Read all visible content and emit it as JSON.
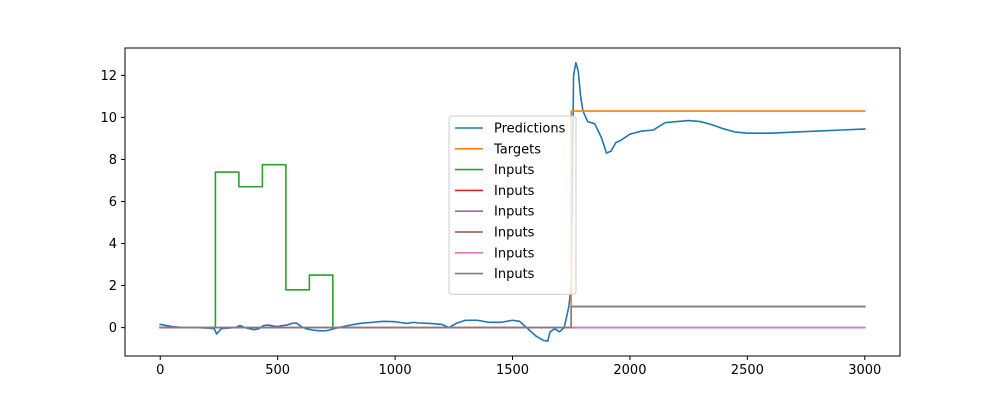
{
  "chart_data": {
    "type": "line",
    "title": "",
    "xlabel": "",
    "ylabel": "",
    "xlim": [
      -150,
      3150
    ],
    "ylim": [
      -1.35,
      13.3
    ],
    "xticks": [
      0,
      500,
      1000,
      1500,
      2000,
      2500,
      3000
    ],
    "yticks": [
      0,
      2,
      4,
      6,
      8,
      10,
      12
    ],
    "grid": false,
    "legend_position": "center",
    "series": [
      {
        "name": "Predictions",
        "color": "#1f77b4",
        "x": [
          0,
          50,
          100,
          150,
          200,
          230,
          240,
          260,
          290,
          320,
          340,
          360,
          380,
          400,
          420,
          440,
          460,
          480,
          500,
          520,
          540,
          560,
          580,
          600,
          620,
          650,
          680,
          700,
          720,
          740,
          760,
          800,
          850,
          900,
          950,
          1000,
          1050,
          1080,
          1100,
          1150,
          1200,
          1230,
          1260,
          1300,
          1350,
          1400,
          1450,
          1500,
          1530,
          1560,
          1600,
          1630,
          1650,
          1660,
          1680,
          1700,
          1720,
          1740,
          1750,
          1760,
          1770,
          1780,
          1790,
          1800,
          1820,
          1850,
          1880,
          1900,
          1920,
          1940,
          1960,
          2000,
          2050,
          2100,
          2150,
          2200,
          2250,
          2300,
          2350,
          2400,
          2450,
          2500,
          2550,
          2600,
          2700,
          2800,
          2900,
          3000
        ],
        "y": [
          0.15,
          0.05,
          0.0,
          0.0,
          -0.02,
          -0.05,
          -0.3,
          -0.05,
          -0.02,
          0.0,
          0.1,
          0.0,
          -0.05,
          -0.1,
          -0.05,
          0.1,
          0.12,
          0.08,
          0.05,
          0.1,
          0.12,
          0.2,
          0.22,
          0.05,
          -0.05,
          -0.12,
          -0.15,
          -0.15,
          -0.12,
          -0.05,
          0.0,
          0.1,
          0.2,
          0.25,
          0.3,
          0.28,
          0.2,
          0.25,
          0.22,
          0.2,
          0.15,
          0.0,
          0.2,
          0.35,
          0.35,
          0.25,
          0.25,
          0.35,
          0.3,
          0.0,
          -0.4,
          -0.6,
          -0.65,
          -0.2,
          -0.05,
          -0.2,
          0.0,
          1.0,
          2.0,
          12.0,
          12.6,
          12.2,
          11.0,
          10.3,
          9.8,
          9.7,
          9.0,
          8.3,
          8.4,
          8.8,
          8.9,
          9.2,
          9.35,
          9.4,
          9.75,
          9.8,
          9.85,
          9.8,
          9.65,
          9.45,
          9.3,
          9.25,
          9.25,
          9.25,
          9.3,
          9.35,
          9.4,
          9.45
        ]
      },
      {
        "name": "Targets",
        "color": "#ff7f0e",
        "x": [
          0,
          1750,
          1750,
          3000
        ],
        "y": [
          0,
          0,
          10.3,
          10.3
        ]
      },
      {
        "name": "Inputs",
        "color": "#2ca02c",
        "x": [
          0,
          235,
          235,
          335,
          335,
          435,
          435,
          535,
          535,
          635,
          635,
          735,
          735,
          3000
        ],
        "y": [
          0,
          0,
          7.4,
          7.4,
          6.7,
          6.7,
          7.75,
          7.75,
          1.8,
          1.8,
          2.5,
          2.5,
          0,
          0
        ]
      },
      {
        "name": "Inputs",
        "color": "#d62728",
        "x": [
          0,
          3000
        ],
        "y": [
          0,
          0
        ]
      },
      {
        "name": "Inputs",
        "color": "#9467bd",
        "x": [
          0,
          3000
        ],
        "y": [
          0,
          0
        ]
      },
      {
        "name": "Inputs",
        "color": "#8c564b",
        "x": [
          0,
          1750,
          1750,
          3000
        ],
        "y": [
          0,
          0,
          1.0,
          1.0
        ]
      },
      {
        "name": "Inputs",
        "color": "#e377c2",
        "x": [
          0,
          3000
        ],
        "y": [
          0,
          0
        ]
      },
      {
        "name": "Inputs",
        "color": "#7f7f7f",
        "x": [
          0,
          1750,
          1750,
          3000
        ],
        "y": [
          0,
          0,
          1.0,
          1.0
        ]
      }
    ]
  }
}
